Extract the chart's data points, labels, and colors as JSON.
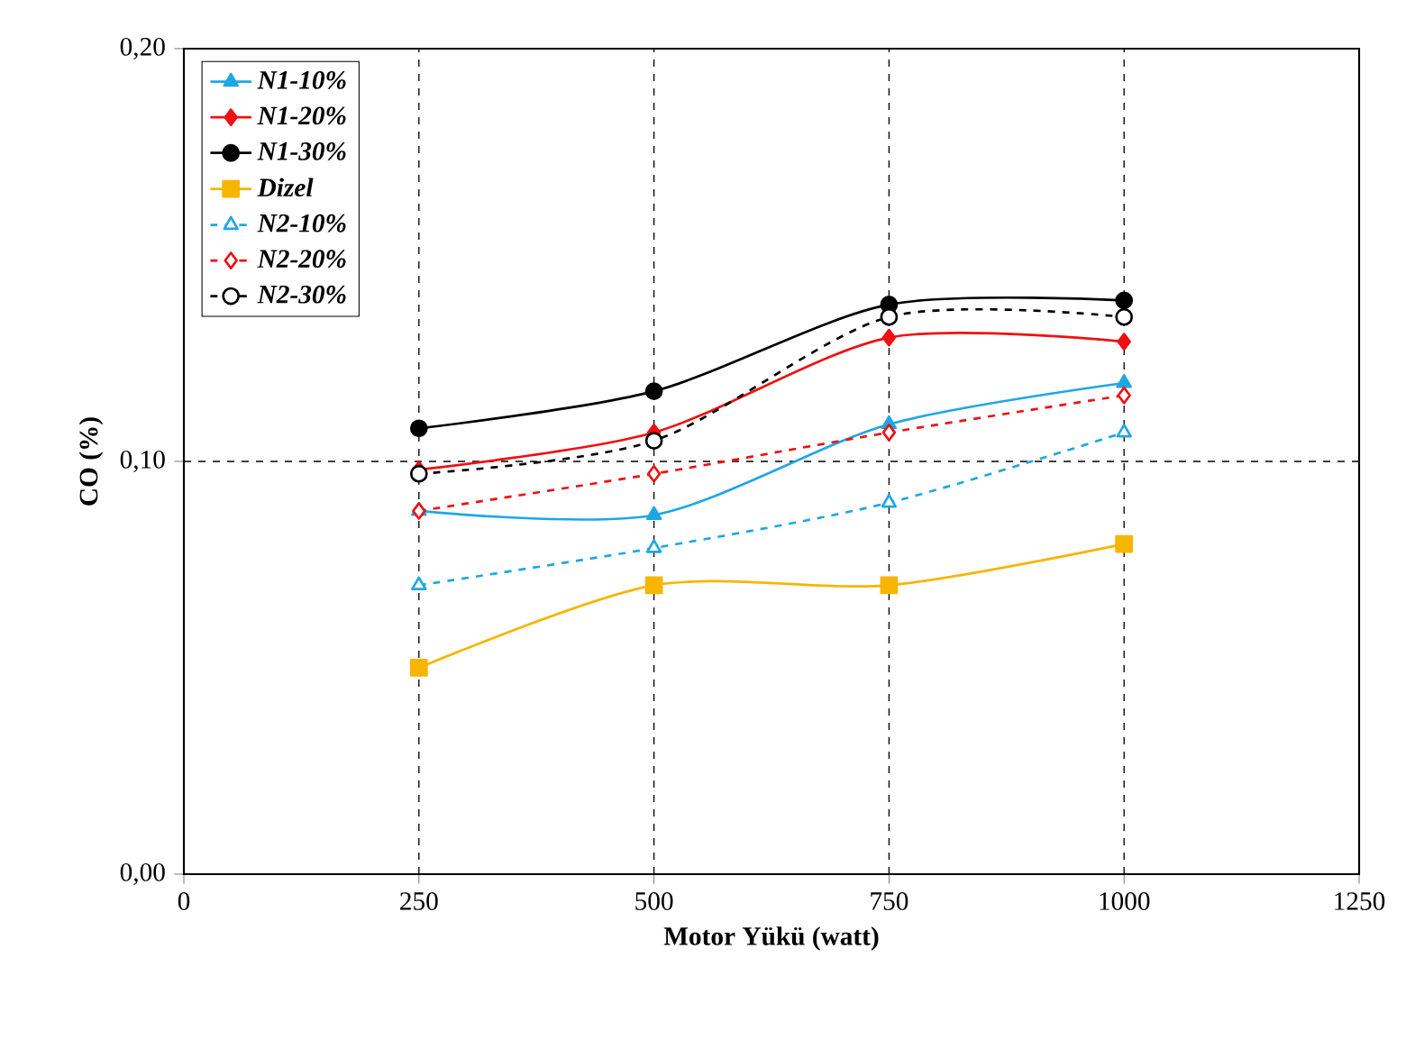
{
  "chart_data": {
    "type": "line",
    "xlabel": "Motor Yükü (watt)",
    "ylabel": "CO (%)",
    "xlim": [
      0,
      1250
    ],
    "xticks": [
      0,
      250,
      500,
      750,
      1000,
      1250
    ],
    "ylim": [
      0,
      0.2
    ],
    "yticks": [
      {
        "value": 0,
        "label": "0,00"
      },
      {
        "value": 0.1,
        "label": "0,10"
      },
      {
        "value": 0.2,
        "label": "0,20"
      }
    ],
    "grid": true,
    "legend": "top left",
    "x": [
      250,
      500,
      750,
      1000
    ],
    "series": [
      {
        "name": "N1-10%",
        "color": "#1ea7e6",
        "marker": "triangle",
        "line_style": "solid",
        "values": [
          0.088,
          0.087,
          0.109,
          0.119
        ]
      },
      {
        "name": "N1-20%",
        "color": "#ee1111",
        "marker": "diamond",
        "line_style": "solid",
        "values": [
          0.098,
          0.107,
          0.13,
          0.129
        ]
      },
      {
        "name": "N1-30%",
        "color": "#000000",
        "marker": "circle",
        "line_style": "solid",
        "values": [
          0.108,
          0.117,
          0.138,
          0.139
        ]
      },
      {
        "name": "Dizel",
        "color": "#f7b500",
        "marker": "square",
        "line_style": "solid",
        "values": [
          0.05,
          0.07,
          0.07,
          0.08
        ]
      },
      {
        "name": "N2-10%",
        "color": "#1ea7e6",
        "marker": "triangle",
        "line_style": "dashed",
        "values": [
          0.07,
          0.079,
          0.09,
          0.107
        ]
      },
      {
        "name": "N2-20%",
        "color": "#ee1111",
        "marker": "diamond",
        "line_style": "dashed",
        "values": [
          0.088,
          0.097,
          0.107,
          0.116
        ]
      },
      {
        "name": "N2-30%",
        "color": "#000000",
        "marker": "circle",
        "line_style": "dashed",
        "values": [
          0.097,
          0.105,
          0.135,
          0.135
        ]
      }
    ]
  }
}
